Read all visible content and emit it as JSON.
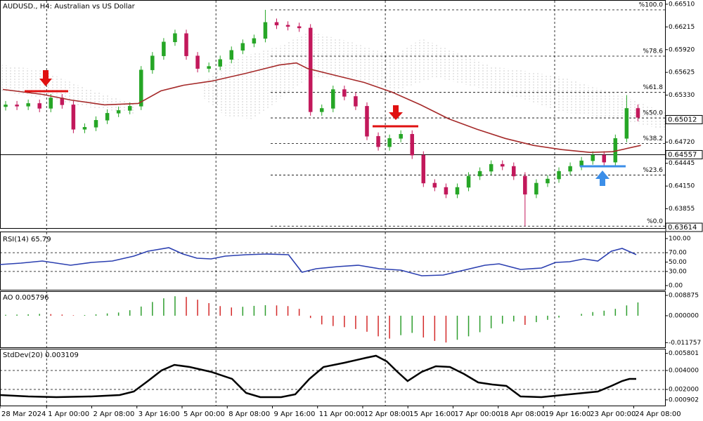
{
  "chart_data": [
    {
      "type": "candlestick",
      "title": "AUDUSD., H4:  Australian vs US Dollar",
      "xlim": [
        -0.5,
        117.3
      ],
      "xticks": [
        {
          "value": -0.5,
          "label": "28 Mar 2024"
        },
        {
          "value": 7.75,
          "label": "1 Apr 00:00"
        },
        {
          "value": 15.75,
          "label": "2 Apr 08:00"
        },
        {
          "value": 23.75,
          "label": "3 Apr 16:00"
        },
        {
          "value": 31.75,
          "label": "5 Apr 00:00"
        },
        {
          "value": 39.75,
          "label": "8 Apr 08:00"
        },
        {
          "value": 47.75,
          "label": "9 Apr 16:00"
        },
        {
          "value": 55.75,
          "label": "11 Apr 00:00"
        },
        {
          "value": 63.75,
          "label": "12 Apr 08:00"
        },
        {
          "value": 71.75,
          "label": "15 Apr 16:00"
        },
        {
          "value": 79.75,
          "label": "17 Apr 00:00"
        },
        {
          "value": 87.75,
          "label": "18 Apr 08:00"
        },
        {
          "value": 95.75,
          "label": "19 Apr 16:00"
        },
        {
          "value": 103.75,
          "label": "23 Apr 00:00"
        },
        {
          "value": 111.75,
          "label": "24 Apr 08:00"
        }
      ],
      "xgrid": [
        7.75,
        37.75,
        67.75,
        97.75
      ],
      "ylim": [
        0.63605,
        0.66537
      ],
      "yticks": [
        {
          "value": 0.6651,
          "label": "0.66510"
        },
        0.66215,
        {
          "value": 0.6592,
          "label": "0.65920"
        },
        0.65625,
        {
          "value": 0.6533,
          "label": "0.65330"
        },
        {
          "value": 0.6472,
          "label": "0.64720"
        },
        0.64445,
        {
          "value": 0.6415,
          "label": "0.64150"
        },
        0.63855
      ],
      "open": [
        0.6518,
        0.65204,
        0.65186,
        0.65222,
        0.65158,
        0.65294,
        0.65204,
        0.64886,
        0.64913,
        0.65004,
        0.65095,
        0.65131,
        0.65186,
        0.65657,
        0.65839,
        0.6602,
        0.66129,
        0.65839,
        0.65675,
        0.65703,
        0.65793,
        0.65911,
        0.66002,
        0.66065,
        0.66274,
        0.66238,
        0.6622,
        0.66201,
        0.65113,
        0.65158,
        0.65403,
        0.65313,
        0.65186,
        0.64796,
        0.6466,
        0.64768,
        0.64823,
        0.64551,
        0.64188,
        0.64133,
        0.64043,
        0.64133,
        0.64279,
        0.64342,
        0.64433,
        0.64406,
        0.64279,
        0.64043,
        0.64188,
        0.64242,
        0.64342,
        0.64406,
        0.64478,
        0.64551,
        0.6446,
        0.64768,
        0.65158
      ],
      "high": [
        0.65254,
        0.65254,
        0.65272,
        0.65272,
        0.65344,
        0.65344,
        0.65254,
        0.64963,
        0.65054,
        0.65145,
        0.65181,
        0.65236,
        0.65707,
        0.65889,
        0.6607,
        0.66179,
        0.66179,
        0.65889,
        0.65753,
        0.65843,
        0.65961,
        0.66052,
        0.66115,
        0.66437,
        0.66324,
        0.66288,
        0.6627,
        0.66251,
        0.65208,
        0.65453,
        0.65453,
        0.65363,
        0.65236,
        0.64846,
        0.64818,
        0.64873,
        0.64873,
        0.64601,
        0.64238,
        0.64183,
        0.64183,
        0.64329,
        0.64392,
        0.64483,
        0.64483,
        0.64456,
        0.64329,
        0.64238,
        0.64292,
        0.64392,
        0.64456,
        0.64528,
        0.64601,
        0.64601,
        0.64818,
        0.6533,
        0.65208
      ],
      "low": [
        0.6513,
        0.65136,
        0.65136,
        0.65108,
        0.65108,
        0.65154,
        0.64836,
        0.64836,
        0.64863,
        0.64954,
        0.65045,
        0.65081,
        0.65136,
        0.65607,
        0.65789,
        0.6597,
        0.65789,
        0.65625,
        0.65625,
        0.65653,
        0.65743,
        0.65861,
        0.65952,
        0.66015,
        0.66188,
        0.6617,
        0.66151,
        0.65063,
        0.65063,
        0.65108,
        0.65263,
        0.65136,
        0.64746,
        0.6461,
        0.6461,
        0.64718,
        0.64501,
        0.64138,
        0.64083,
        0.63993,
        0.63993,
        0.64083,
        0.64229,
        0.64292,
        0.64356,
        0.64229,
        0.6363,
        0.63993,
        0.64138,
        0.64192,
        0.64292,
        0.64356,
        0.64428,
        0.6441,
        0.6441,
        0.64718,
        0.6499
      ],
      "close": [
        0.65204,
        0.65186,
        0.65222,
        0.65158,
        0.65294,
        0.65204,
        0.64886,
        0.64913,
        0.65004,
        0.65095,
        0.65131,
        0.65186,
        0.65657,
        0.65839,
        0.6602,
        0.66129,
        0.65839,
        0.65675,
        0.65703,
        0.65793,
        0.65911,
        0.66002,
        0.66065,
        0.66274,
        0.66238,
        0.6622,
        0.66201,
        0.65113,
        0.65158,
        0.65403,
        0.65313,
        0.65186,
        0.64796,
        0.6466,
        0.64768,
        0.64823,
        0.64551,
        0.64188,
        0.64133,
        0.64043,
        0.64133,
        0.64279,
        0.64342,
        0.64433,
        0.64406,
        0.64279,
        0.64043,
        0.64188,
        0.64242,
        0.64342,
        0.64406,
        0.64478,
        0.64551,
        0.6446,
        0.64768,
        0.65158,
        0.6504
      ],
      "up_color": "#26a626",
      "down_color": "#c2185b",
      "ma": {
        "color": "#a52a2a",
        "x": [
          0,
          7,
          12,
          18,
          24,
          28,
          32,
          37,
          43,
          49,
          52,
          54,
          59,
          64,
          69,
          74,
          79,
          84,
          89,
          94,
          99,
          104,
          108,
          113
        ],
        "values": [
          0.65403,
          0.6534,
          0.65267,
          0.65204,
          0.65222,
          0.65385,
          0.65458,
          0.65512,
          0.65612,
          0.65721,
          0.65748,
          0.65675,
          0.65585,
          0.65494,
          0.65367,
          0.65204,
          0.65022,
          0.64886,
          0.64768,
          0.64678,
          0.64623,
          0.64587,
          0.64596,
          0.64678
        ]
      },
      "hlines": [
        0.64557
      ],
      "price_labels": [
        {
          "value": 0.65012,
          "label": "0.65012"
        },
        {
          "value": 0.64557,
          "label": "0.64557"
        },
        {
          "value": 0.63614,
          "label": "0.63614"
        }
      ],
      "fib_levels": [
        {
          "value": 0.66437,
          "label": "%100.0"
        },
        {
          "value": 0.65836,
          "label": "%78.6"
        },
        {
          "value": 0.65365,
          "label": "%61.8"
        },
        {
          "value": 0.65034,
          "label": "%50.0"
        },
        {
          "value": 0.64702,
          "label": "%38.2"
        },
        {
          "value": 0.64292,
          "label": "%23.6"
        },
        {
          "value": 0.6363,
          "label": "%0.0"
        }
      ]
    },
    {
      "type": "line",
      "title": "RSI(14) 65.79",
      "color": "#2b3fb0",
      "x": [
        -0.5,
        3.2,
        7,
        12,
        15.7,
        19.4,
        23.2,
        25.7,
        29.4,
        31.9,
        34.4,
        36.9,
        39.4,
        43.1,
        46.8,
        50.6,
        53,
        55.5,
        59.3,
        63,
        66.7,
        70.5,
        74.2,
        78,
        81.7,
        85.4,
        87.9,
        91.7,
        95.4,
        97.9,
        100.4,
        102.9,
        105.4,
        107.8,
        109.7,
        112.2
      ],
      "values": [
        44.8,
        47.8,
        52.2,
        43.3,
        49.3,
        52.2,
        62.7,
        73.1,
        80.6,
        67.2,
        58.2,
        56.7,
        62.7,
        65.7,
        67.2,
        65.7,
        28.4,
        35.8,
        40.3,
        43.3,
        35.8,
        32.8,
        20.9,
        22.4,
        32.8,
        43.3,
        46.3,
        34.3,
        37.3,
        49.3,
        50.7,
        56.7,
        52.2,
        73.1,
        79.1,
        65.79
      ],
      "ylim": [
        0,
        100
      ],
      "yticks": [
        {
          "value": 100,
          "label": "100.00"
        },
        {
          "value": 70,
          "label": "70.00"
        },
        {
          "value": 50,
          "label": "50.00"
        },
        {
          "value": 30,
          "label": "30.00"
        },
        {
          "value": 0,
          "label": "0.00"
        }
      ],
      "levels": [
        70,
        30
      ]
    },
    {
      "type": "bar",
      "title": "AO 0.005796",
      "up_color": "#2e9e2e",
      "down_color": "#d42a2a",
      "values": [
        0.0004,
        0.0005,
        0.0006,
        0.0008,
        0.0007,
        0.0005,
        0.0002,
        0.0003,
        0.0006,
        0.001,
        0.0014,
        0.0024,
        0.004,
        0.006,
        0.0076,
        0.0085,
        0.0082,
        0.007,
        0.0055,
        0.0042,
        0.0036,
        0.0039,
        0.0043,
        0.0046,
        0.0045,
        0.0042,
        0.003,
        -0.001,
        -0.0038,
        -0.0045,
        -0.005,
        -0.0058,
        -0.007,
        -0.009,
        -0.01,
        -0.0085,
        -0.0075,
        -0.0095,
        -0.011,
        -0.0117,
        -0.0105,
        -0.009,
        -0.0072,
        -0.0055,
        -0.0035,
        -0.0025,
        -0.004,
        -0.0028,
        -0.0018,
        -0.0008,
        0,
        0.0008,
        0.0016,
        0.0022,
        0.003,
        0.0045,
        0.005796
      ],
      "ylim": [
        -0.0138,
        0.0104
      ],
      "yticks": [
        0.008875,
        {
          "value": 0,
          "label": "0.000000"
        },
        -0.011757
      ]
    },
    {
      "type": "line",
      "title": "StdDev(20) 0.003109",
      "color": "#000000",
      "x": [
        -0.5,
        4.5,
        9.5,
        15.7,
        20.7,
        23.2,
        25.7,
        28.1,
        30.4,
        33.1,
        36.9,
        40.6,
        43.1,
        45.6,
        49.3,
        51.8,
        54.3,
        56.8,
        60.5,
        64.3,
        66.1,
        68,
        69.9,
        71.7,
        74.2,
        76.7,
        79.2,
        81.7,
        84.2,
        86.7,
        89.2,
        91.7,
        95.4,
        99.1,
        102.9,
        105.4,
        107.8,
        109.7,
        111,
        112.2
      ],
      "values": [
        0.001407,
        0.001259,
        0.001185,
        0.001259,
        0.001407,
        0.001778,
        0.002889,
        0.004,
        0.004593,
        0.00437,
        0.003852,
        0.003111,
        0.00163,
        0.001185,
        0.001185,
        0.001481,
        0.003111,
        0.00437,
        0.004815,
        0.005333,
        0.005556,
        0.004963,
        0.003852,
        0.002889,
        0.003852,
        0.004444,
        0.00437,
        0.00363,
        0.002741,
        0.002519,
        0.00237,
        0.001259,
        0.001185,
        0.001407,
        0.00163,
        0.001778,
        0.00237,
        0.002889,
        0.003111,
        0.003109
      ],
      "ylim": [
        0.0003,
        0.00622
      ],
      "yticks": [
        0.005801,
        {
          "value": 0.004,
          "label": "0.004000"
        },
        {
          "value": 0.002,
          "label": "0.002000"
        },
        0.000902
      ],
      "levels": [
        0.004,
        0.002
      ]
    }
  ]
}
